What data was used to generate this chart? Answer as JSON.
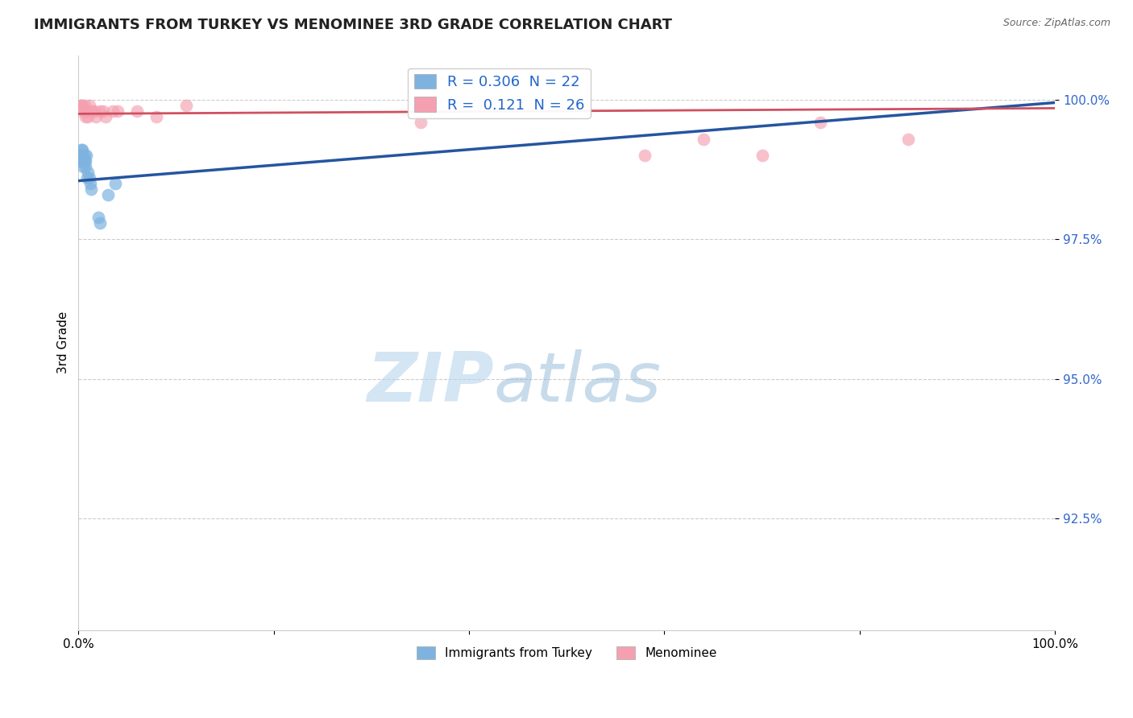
{
  "title": "IMMIGRANTS FROM TURKEY VS MENOMINEE 3RD GRADE CORRELATION CHART",
  "source": "Source: ZipAtlas.com",
  "ylabel": "3rd Grade",
  "xlim": [
    0.0,
    1.0
  ],
  "ylim": [
    0.905,
    1.008
  ],
  "yticks": [
    0.925,
    0.95,
    0.975,
    1.0
  ],
  "ytick_labels": [
    "92.5%",
    "95.0%",
    "97.5%",
    "100.0%"
  ],
  "r_blue": 0.306,
  "n_blue": 22,
  "r_pink": 0.121,
  "n_pink": 26,
  "blue_color": "#7eb3e0",
  "pink_color": "#f4a0b0",
  "blue_line_color": "#2555a0",
  "pink_line_color": "#d05060",
  "legend_label_blue": "Immigrants from Turkey",
  "legend_label_pink": "Menominee",
  "blue_x": [
    0.001,
    0.002,
    0.003,
    0.003,
    0.004,
    0.004,
    0.005,
    0.005,
    0.006,
    0.006,
    0.007,
    0.007,
    0.008,
    0.009,
    0.01,
    0.011,
    0.012,
    0.013,
    0.02,
    0.022,
    0.03,
    0.038
  ],
  "blue_y": [
    0.99,
    0.989,
    0.991,
    0.99,
    0.991,
    0.99,
    0.989,
    0.988,
    0.99,
    0.989,
    0.989,
    0.988,
    0.99,
    0.986,
    0.987,
    0.986,
    0.985,
    0.984,
    0.979,
    0.978,
    0.983,
    0.985
  ],
  "pink_x": [
    0.002,
    0.003,
    0.004,
    0.005,
    0.006,
    0.007,
    0.008,
    0.01,
    0.011,
    0.014,
    0.016,
    0.018,
    0.022,
    0.025,
    0.028,
    0.035,
    0.04,
    0.06,
    0.08,
    0.11,
    0.35,
    0.58,
    0.64,
    0.7,
    0.76,
    0.85
  ],
  "pink_y": [
    0.999,
    0.999,
    0.999,
    0.998,
    0.999,
    0.997,
    0.998,
    0.997,
    0.999,
    0.998,
    0.998,
    0.997,
    0.998,
    0.998,
    0.997,
    0.998,
    0.998,
    0.998,
    0.997,
    0.999,
    0.996,
    0.99,
    0.993,
    0.99,
    0.996,
    0.993
  ],
  "blue_line_x0": 0.0,
  "blue_line_y0": 0.9855,
  "blue_line_x1": 1.0,
  "blue_line_y1": 0.9995,
  "pink_line_x0": 0.0,
  "pink_line_y0": 0.9975,
  "pink_line_x1": 1.0,
  "pink_line_y1": 0.9985,
  "watermark_zip": "ZIP",
  "watermark_atlas": "atlas",
  "bg_color": "#ffffff",
  "grid_color": "#cccccc"
}
